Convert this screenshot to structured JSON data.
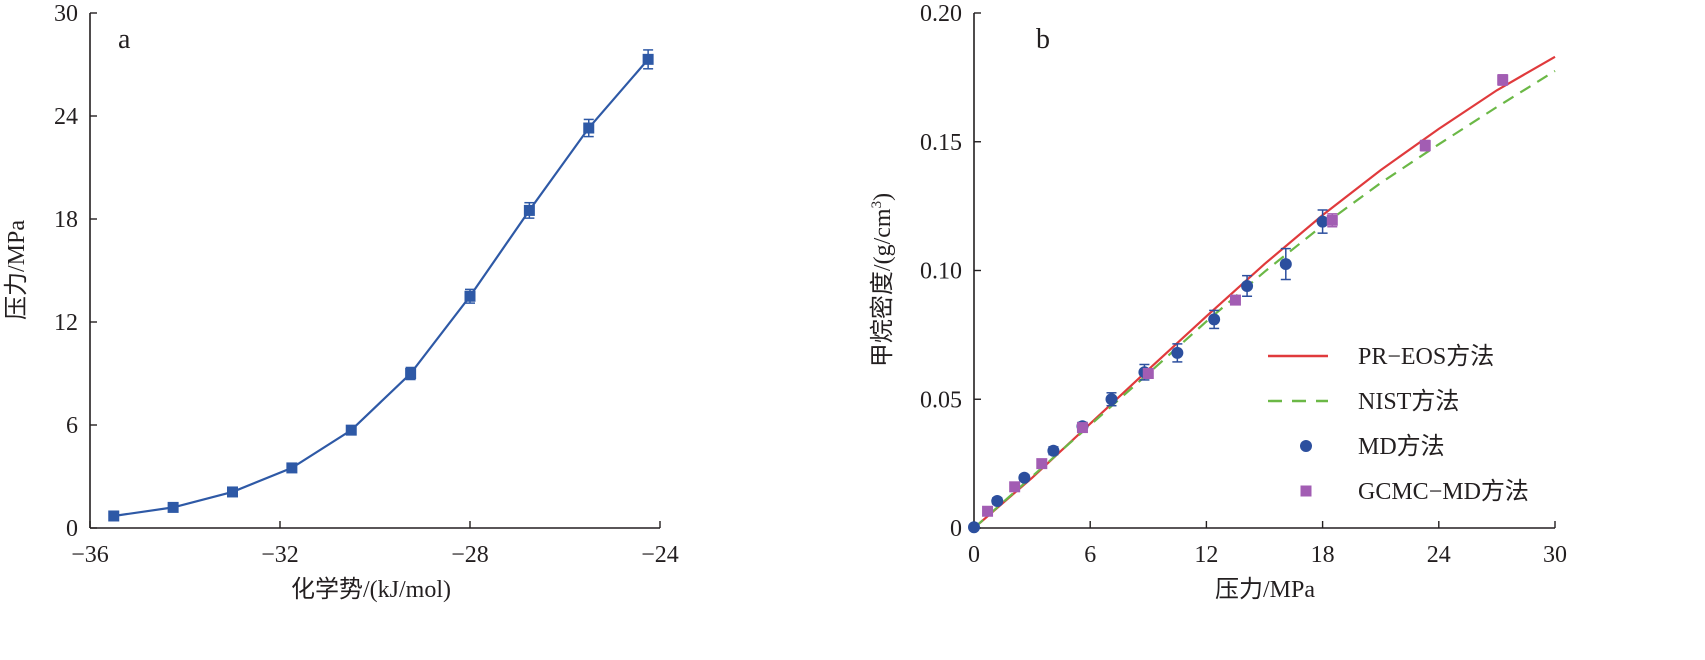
{
  "chart_data": [
    {
      "type": "line",
      "panel_label": "a",
      "xlabel": "化学势/(kJ/mol)",
      "ylabel": "压力/MPa",
      "xlim": [
        -36,
        -24
      ],
      "ylim": [
        0,
        30
      ],
      "xticks": [
        -36,
        -32,
        -28,
        -24
      ],
      "xtick_labels": [
        "−36",
        "−32",
        "−28",
        "−24"
      ],
      "yticks": [
        0,
        6,
        12,
        18,
        24,
        30
      ],
      "ytick_labels": [
        "0",
        "6",
        "12",
        "18",
        "24",
        "30"
      ],
      "grid": false,
      "series": [
        {
          "color": "#2e59a6",
          "marker": "square",
          "x": [
            -35.5,
            -34.25,
            -33.0,
            -31.75,
            -30.5,
            -29.25,
            -28.0,
            -26.75,
            -25.5,
            -24.25
          ],
          "y": [
            0.7,
            1.2,
            2.1,
            3.5,
            5.7,
            9.0,
            13.5,
            18.5,
            23.3,
            27.3
          ],
          "error": [
            0.2,
            0.2,
            0.2,
            0.2,
            0.25,
            0.35,
            0.4,
            0.45,
            0.5,
            0.55
          ]
        }
      ]
    },
    {
      "type": "line",
      "panel_label": "b",
      "xlabel": "压力/MPa",
      "ylabel_main": "甲烷密度/(g/cm",
      "ylabel_sup": "3",
      "ylabel_end": ")",
      "xlim": [
        0,
        30
      ],
      "ylim": [
        0,
        0.2
      ],
      "xticks": [
        0,
        6,
        12,
        18,
        24,
        30
      ],
      "xtick_labels": [
        "0",
        "6",
        "12",
        "18",
        "24",
        "30"
      ],
      "yticks": [
        0,
        0.05,
        0.1,
        0.15,
        0.2
      ],
      "ytick_labels": [
        "0",
        "0.05",
        "0.10",
        "0.15",
        "0.20"
      ],
      "grid": false,
      "legend_position": "bottom-right",
      "series": [
        {
          "name": "PR−EOS方法",
          "style": "solid-line",
          "color": "#e03a3c",
          "x": [
            0,
            3,
            6,
            9,
            12,
            15,
            18,
            21,
            24,
            27,
            30
          ],
          "y": [
            0,
            0.0195,
            0.0405,
            0.0615,
            0.0822,
            0.1025,
            0.1215,
            0.139,
            0.155,
            0.17,
            0.183
          ]
        },
        {
          "name": "NIST方法",
          "style": "dashed-line",
          "color": "#6bb846",
          "x": [
            0,
            3,
            6,
            9,
            12,
            15,
            18,
            21,
            24,
            27,
            30
          ],
          "y": [
            0,
            0.02,
            0.04,
            0.06,
            0.0802,
            0.0995,
            0.1175,
            0.134,
            0.149,
            0.1635,
            0.1775
          ]
        },
        {
          "name": "MD方法",
          "style": "circle-markers",
          "color": "#2c4f9e",
          "x": [
            0,
            1.2,
            2.6,
            4.1,
            5.6,
            7.1,
            8.8,
            10.5,
            12.4,
            14.1,
            16.1,
            18.0
          ],
          "y": [
            0.0003,
            0.0105,
            0.0195,
            0.03,
            0.0395,
            0.05,
            0.0605,
            0.068,
            0.081,
            0.094,
            0.1025,
            0.119
          ],
          "error": [
            0.0005,
            0.0012,
            0.0012,
            0.0015,
            0.0015,
            0.0025,
            0.003,
            0.0035,
            0.0035,
            0.004,
            0.006,
            0.0045
          ]
        },
        {
          "name": "GCMC−MD方法",
          "style": "square-markers",
          "color": "#a25db3",
          "x": [
            0.7,
            2.1,
            3.5,
            5.6,
            9.0,
            13.5,
            18.5,
            23.3,
            27.3
          ],
          "y": [
            0.0065,
            0.016,
            0.025,
            0.039,
            0.06,
            0.0885,
            0.1195,
            0.1485,
            0.174
          ],
          "error": [
            0.0005,
            0.0008,
            0.001,
            0.001,
            0.0012,
            0.0015,
            0.0025,
            0.002,
            0.002
          ]
        }
      ]
    }
  ]
}
